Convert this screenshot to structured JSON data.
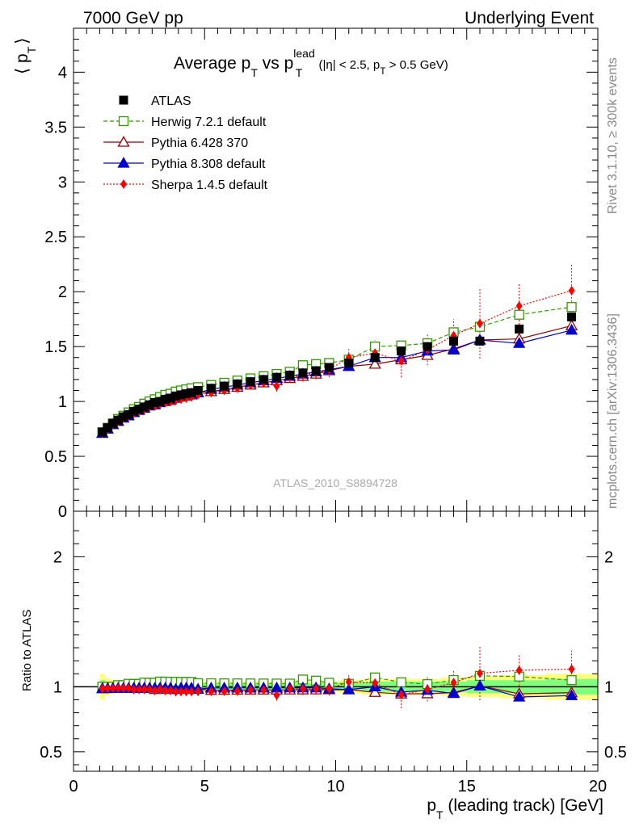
{
  "header": {
    "left": "7000 GeV pp",
    "right": "Underlying Event"
  },
  "side": {
    "rivet": "Rivet 3.1.10, ≥ 300k events",
    "mcplots": "mcplots.cern.ch [arXiv:1306.3436]"
  },
  "labels": {
    "title_main": "Average p",
    "title_sub1": "T",
    "title_vs": " vs p",
    "title_sup": "lead",
    "title_sub2": "T",
    "title_cut": " (|η| < 2.5, p",
    "title_cut_sub": "T",
    "title_cut_end": " > 0.5 GeV)",
    "ylabel_main": "⟨ p",
    "ylabel_sub": "T",
    "ylabel_close": "⟩",
    "ylabel_ratio": "Ratio to ATLAS",
    "xlabel_main": "p",
    "xlabel_sub": "T",
    "xlabel_rest": " (leading track) [GeV]",
    "watermark": "ATLAS_2010_S8894728"
  },
  "chart_data": {
    "type": "scatter",
    "title": "Average pT vs pT lead (|η| < 2.5, pT > 0.5 GeV)",
    "xlabel": "pT (leading track) [GeV]",
    "ylabel": "⟨ pT ⟩",
    "xlim": [
      0,
      20
    ],
    "ylim": [
      0,
      4.4
    ],
    "ratio_ylim": [
      0.35,
      2.35
    ],
    "ratio_ylabel": "Ratio to ATLAS",
    "x_ticks": [
      0,
      5,
      10,
      15,
      20
    ],
    "y_ticks": [
      0.5,
      1,
      1.5,
      2,
      2.5,
      3,
      3.5,
      4
    ],
    "ratio_ticks": [
      0.5,
      1,
      2
    ],
    "x": [
      1.1,
      1.3,
      1.5,
      1.7,
      1.9,
      2.1,
      2.3,
      2.5,
      2.7,
      2.9,
      3.1,
      3.3,
      3.5,
      3.7,
      3.9,
      4.1,
      4.3,
      4.5,
      4.75,
      5.25,
      5.75,
      6.25,
      6.75,
      7.25,
      7.75,
      8.25,
      8.75,
      9.25,
      9.75,
      10.5,
      11.5,
      12.5,
      13.5,
      14.5,
      15.5,
      17.0,
      19.0
    ],
    "data_band": {
      "inner": [
        0.05,
        0.04,
        0.03,
        0.03,
        0.03,
        0.03,
        0.03,
        0.03,
        0.03,
        0.03,
        0.03,
        0.03,
        0.03,
        0.03,
        0.03,
        0.03,
        0.03,
        0.03,
        0.03,
        0.03,
        0.03,
        0.03,
        0.03,
        0.03,
        0.03,
        0.03,
        0.03,
        0.03,
        0.03,
        0.03,
        0.04,
        0.04,
        0.04,
        0.04,
        0.05,
        0.05,
        0.06
      ],
      "outer": [
        0.1,
        0.07,
        0.05,
        0.05,
        0.05,
        0.04,
        0.04,
        0.04,
        0.04,
        0.04,
        0.04,
        0.04,
        0.04,
        0.04,
        0.04,
        0.04,
        0.04,
        0.04,
        0.04,
        0.04,
        0.04,
        0.04,
        0.04,
        0.04,
        0.04,
        0.04,
        0.04,
        0.04,
        0.04,
        0.05,
        0.06,
        0.06,
        0.06,
        0.07,
        0.08,
        0.09,
        0.1
      ]
    },
    "series": [
      {
        "name": "ATLAS",
        "legend": "ATLAS",
        "color": "#000000",
        "marker": "square-filled",
        "line": "none",
        "values": [
          0.72,
          0.76,
          0.8,
          0.83,
          0.86,
          0.88,
          0.91,
          0.93,
          0.95,
          0.97,
          0.99,
          1.0,
          1.02,
          1.03,
          1.05,
          1.06,
          1.07,
          1.08,
          1.1,
          1.12,
          1.14,
          1.16,
          1.18,
          1.2,
          1.22,
          1.24,
          1.26,
          1.28,
          1.31,
          1.35,
          1.4,
          1.46,
          1.5,
          1.55,
          1.55,
          1.66,
          1.77
        ]
      },
      {
        "name": "Herwig 7.2.1 default",
        "legend": "Herwig 7.2.1 default",
        "color": "#339900",
        "marker": "square-open",
        "line": "dashed",
        "values": [
          0.72,
          0.76,
          0.8,
          0.84,
          0.87,
          0.9,
          0.93,
          0.95,
          0.98,
          1.0,
          1.02,
          1.04,
          1.06,
          1.07,
          1.09,
          1.1,
          1.11,
          1.12,
          1.13,
          1.15,
          1.17,
          1.19,
          1.21,
          1.23,
          1.25,
          1.27,
          1.33,
          1.34,
          1.35,
          1.38,
          1.5,
          1.51,
          1.53,
          1.63,
          1.68,
          1.79,
          1.86
        ]
      },
      {
        "name": "Pythia 6.428 370",
        "legend": "Pythia 6.428 370",
        "color": "#990000",
        "marker": "triangle-open",
        "line": "solid",
        "values": [
          0.71,
          0.75,
          0.79,
          0.82,
          0.85,
          0.87,
          0.9,
          0.92,
          0.94,
          0.96,
          0.97,
          0.99,
          1.0,
          1.01,
          1.03,
          1.04,
          1.05,
          1.06,
          1.08,
          1.09,
          1.11,
          1.13,
          1.15,
          1.17,
          1.19,
          1.21,
          1.23,
          1.25,
          1.28,
          1.32,
          1.34,
          1.38,
          1.42,
          1.48,
          1.56,
          1.57,
          1.69
        ]
      },
      {
        "name": "Pythia 8.308 default",
        "legend": "Pythia 8.308 default",
        "color": "#0000cc",
        "marker": "triangle-filled",
        "line": "solid",
        "values": [
          0.71,
          0.75,
          0.79,
          0.82,
          0.85,
          0.87,
          0.9,
          0.92,
          0.94,
          0.96,
          0.98,
          0.99,
          1.01,
          1.02,
          1.03,
          1.05,
          1.06,
          1.07,
          1.08,
          1.11,
          1.13,
          1.15,
          1.17,
          1.19,
          1.21,
          1.23,
          1.25,
          1.27,
          1.29,
          1.32,
          1.4,
          1.4,
          1.46,
          1.47,
          1.56,
          1.53,
          1.65
        ]
      },
      {
        "name": "Sherpa 1.4.5 default",
        "legend": "Sherpa 1.4.5 default",
        "color": "#ff0000",
        "marker": "diamond-filled",
        "line": "dotted",
        "values": [
          0.71,
          0.75,
          0.79,
          0.82,
          0.85,
          0.87,
          0.89,
          0.91,
          0.93,
          0.95,
          0.96,
          0.98,
          0.99,
          1.0,
          1.01,
          1.02,
          1.03,
          1.04,
          1.06,
          1.08,
          1.1,
          1.12,
          1.15,
          1.17,
          1.14,
          1.22,
          1.24,
          1.26,
          1.29,
          1.4,
          1.44,
          1.37,
          1.47,
          1.6,
          1.71,
          1.87,
          2.01
        ],
        "errors": [
          0.01,
          0.01,
          0.01,
          0.01,
          0.01,
          0.01,
          0.01,
          0.01,
          0.01,
          0.01,
          0.01,
          0.01,
          0.01,
          0.01,
          0.01,
          0.01,
          0.01,
          0.01,
          0.02,
          0.02,
          0.02,
          0.03,
          0.03,
          0.04,
          0.05,
          0.05,
          0.06,
          0.06,
          0.07,
          0.08,
          0.12,
          0.15,
          0.14,
          0.15,
          0.32,
          0.2,
          0.25
        ]
      }
    ]
  }
}
